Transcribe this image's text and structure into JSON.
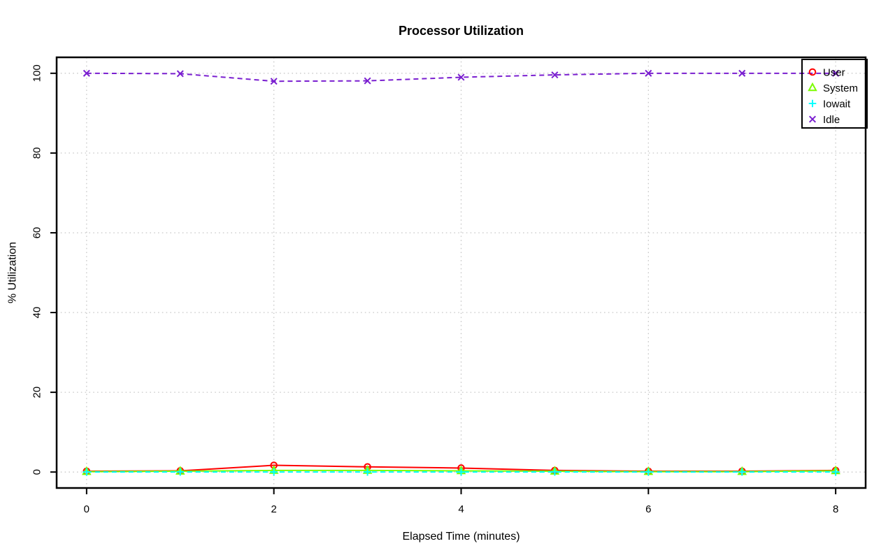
{
  "page": {
    "background_color": "#FFFFFF"
  },
  "chart_data": {
    "type": "line",
    "title": "Processor Utilization",
    "xlabel": "Elapsed Time (minutes)",
    "ylabel": "% Utilization",
    "x": [
      0,
      1,
      2,
      3,
      4,
      5,
      6,
      7,
      8
    ],
    "series": [
      {
        "name": "User",
        "color": "#FF0000",
        "marker": "circle",
        "linestyle": "solid",
        "values": [
          0.2,
          0.3,
          1.7,
          1.3,
          1.0,
          0.4,
          0.2,
          0.2,
          0.4
        ]
      },
      {
        "name": "System",
        "color": "#7CFC00",
        "marker": "triangle",
        "linestyle": "solid",
        "values": [
          0.1,
          0.2,
          0.4,
          0.4,
          0.3,
          0.2,
          0.1,
          0.1,
          0.3
        ]
      },
      {
        "name": "Iowait",
        "color": "#00FFFF",
        "marker": "plus",
        "linestyle": "dashed",
        "values": [
          0,
          0,
          0,
          0,
          0,
          0,
          0,
          0,
          0
        ]
      },
      {
        "name": "Idle",
        "color": "#7A1FD0",
        "marker": "x",
        "linestyle": "dashed",
        "values": [
          100,
          99.9,
          98,
          98.1,
          99,
          99.6,
          100,
          100,
          100
        ]
      }
    ],
    "xlim": [
      0,
      8
    ],
    "ylim": [
      0,
      100
    ],
    "x_ticks": [
      0,
      2,
      4,
      6,
      8
    ],
    "y_ticks": [
      0,
      20,
      40,
      60,
      80,
      100
    ],
    "grid": "dotted",
    "grid_color": "#C8C8C8",
    "axis_color": "#000000",
    "legend_position": "top-right",
    "legend_labels": [
      "User",
      "System",
      "Iowait",
      "Idle"
    ]
  }
}
